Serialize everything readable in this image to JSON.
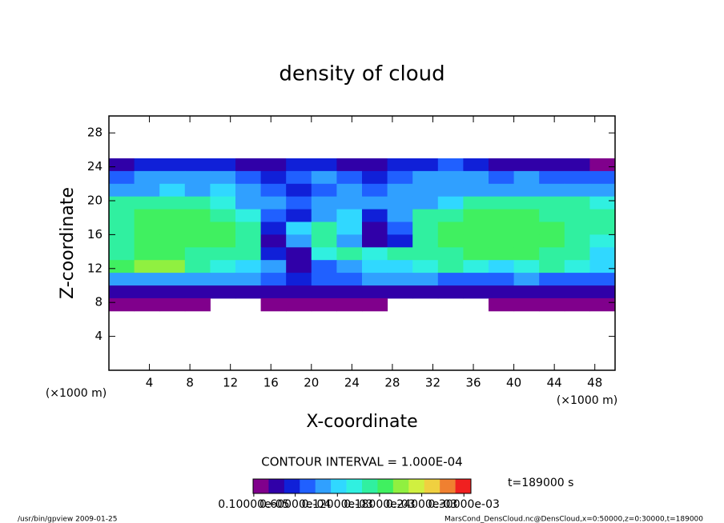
{
  "chart_data": {
    "type": "heatmap",
    "title": "density of cloud",
    "xlabel": "X-coordinate",
    "ylabel": "Z-coordinate",
    "axis_unit": "(×1000 m)",
    "xlim": [
      0,
      50
    ],
    "ylim": [
      0,
      30
    ],
    "xticks": [
      4,
      8,
      12,
      16,
      20,
      24,
      28,
      32,
      36,
      40,
      44,
      48
    ],
    "yticks": [
      4,
      8,
      12,
      16,
      20,
      24,
      28
    ],
    "x": [
      1.25,
      3.75,
      6.25,
      8.75,
      11.25,
      13.75,
      16.25,
      18.75,
      21.25,
      23.75,
      26.25,
      28.75,
      31.25,
      33.75,
      36.25,
      38.75,
      41.25,
      43.75,
      46.25,
      48.75
    ],
    "y": [
      24.25,
      22.75,
      21.25,
      19.75,
      18.25,
      16.75,
      15.25,
      13.75,
      12.25,
      10.75,
      9.25,
      7.75
    ],
    "values": [
      [
        3e-05,
        5e-05,
        6e-05,
        5e-05,
        6e-05,
        4e-05,
        3e-05,
        5e-05,
        6e-05,
        4e-05,
        3e-05,
        5e-05,
        6e-05,
        7e-05,
        5e-05,
        4e-05,
        3e-05,
        4e-05,
        3e-05,
        2e-05
      ],
      [
        8e-05,
        9e-05,
        0.0001,
        9e-05,
        0.0001,
        8e-05,
        6e-05,
        7e-05,
        9e-05,
        8e-05,
        6e-05,
        7e-05,
        9e-05,
        0.0001,
        9e-05,
        8e-05,
        9e-05,
        8e-05,
        7e-05,
        7e-05
      ],
      [
        0.00011,
        0.00011,
        0.00012,
        0.00011,
        0.00012,
        0.0001,
        8e-05,
        6e-05,
        8e-05,
        9e-05,
        8e-05,
        9e-05,
        0.0001,
        0.00011,
        0.0001,
        0.00011,
        0.0001,
        0.0001,
        9e-05,
        9e-05
      ],
      [
        0.00016,
        0.00017,
        0.00017,
        0.00017,
        0.00015,
        0.00011,
        9e-05,
        7e-05,
        9e-05,
        0.0001,
        9e-05,
        0.0001,
        0.00011,
        0.00012,
        0.00016,
        0.00017,
        0.00017,
        0.00016,
        0.00016,
        0.00015
      ],
      [
        0.00017,
        0.00018,
        0.00018,
        0.00018,
        0.00017,
        0.00015,
        8e-05,
        6e-05,
        0.00011,
        0.00012,
        6e-05,
        9e-05,
        0.00016,
        0.00017,
        0.00018,
        0.00018,
        0.00018,
        0.00017,
        0.00017,
        0.00016
      ],
      [
        0.00017,
        0.00018,
        0.00018,
        0.00018,
        0.00018,
        0.00016,
        6e-05,
        0.00012,
        0.00016,
        0.00012,
        3e-05,
        7e-05,
        0.00017,
        0.00018,
        0.00018,
        0.00019,
        0.00019,
        0.00018,
        0.00017,
        0.00016
      ],
      [
        0.00017,
        0.00018,
        0.00018,
        0.00018,
        0.00018,
        0.00017,
        4e-05,
        0.0001,
        0.00017,
        9e-05,
        4e-05,
        6e-05,
        0.00017,
        0.00018,
        0.00018,
        0.00019,
        0.00019,
        0.00018,
        0.00017,
        0.00015
      ],
      [
        0.00017,
        0.00018,
        0.00018,
        0.00017,
        0.00017,
        0.00016,
        6e-05,
        3e-05,
        0.00015,
        0.00016,
        0.00015,
        0.00016,
        0.00017,
        0.00017,
        0.00018,
        0.00018,
        0.00018,
        0.00017,
        0.00016,
        0.00012
      ],
      [
        0.00019,
        0.00021,
        0.0002,
        0.00017,
        0.00015,
        0.00012,
        0.0001,
        4e-05,
        8e-05,
        0.00011,
        0.00012,
        0.00012,
        0.00015,
        0.00016,
        0.00015,
        0.00012,
        0.00015,
        0.00016,
        0.00015,
        0.00012
      ],
      [
        0.0001,
        9e-05,
        9e-05,
        0.0001,
        9e-05,
        9e-05,
        8e-05,
        5e-05,
        7e-05,
        8e-05,
        9e-05,
        9e-05,
        9e-05,
        8e-05,
        7e-05,
        7e-05,
        9e-05,
        8e-05,
        8e-05,
        7e-05
      ],
      [
        3e-05,
        3e-05,
        4e-05,
        3e-05,
        3e-05,
        4e-05,
        3e-05,
        3e-05,
        4e-05,
        3e-05,
        3e-05,
        4e-05,
        4e-05,
        3e-05,
        3e-05,
        3e-05,
        3e-05,
        3e-05,
        3e-05,
        3e-05
      ],
      [
        1e-05,
        1e-05,
        1e-05,
        1e-05,
        null,
        null,
        1e-05,
        1e-05,
        1e-05,
        1e-05,
        1e-05,
        null,
        null,
        null,
        null,
        1e-05,
        1e-05,
        1e-05,
        1e-05,
        1e-05
      ]
    ],
    "clim": [
      0,
      0.00031
    ],
    "colors": [
      "#80008c",
      "#3000a8",
      "#1020d8",
      "#2060ff",
      "#30a0ff",
      "#30d8ff",
      "#30f0e0",
      "#30f0a0",
      "#40f060",
      "#90f040",
      "#d0f040",
      "#f0d040",
      "#f08030",
      "#f02020"
    ],
    "colorbar_ticks": [
      {
        "value": 1e-06,
        "label": "0.10000e-05"
      },
      {
        "value": 6e-05,
        "label": "0.60000e-04"
      },
      {
        "value": 0.00012,
        "label": "0.12000e-03"
      },
      {
        "value": 0.00018,
        "label": "0.18000e-03"
      },
      {
        "value": 0.00024,
        "label": "0.24000e-03"
      },
      {
        "value": 0.0003,
        "label": "0.30000e-03"
      }
    ],
    "contour_label": "CONTOUR INTERVAL = 1.000E-04",
    "time_label": "t=189000 s",
    "footer_left": "/usr/bin/gpview  2009-01-25",
    "footer_right": "MarsCond_DensCloud.nc@DensCloud,x=0:50000,z=0:30000,t=189000"
  }
}
